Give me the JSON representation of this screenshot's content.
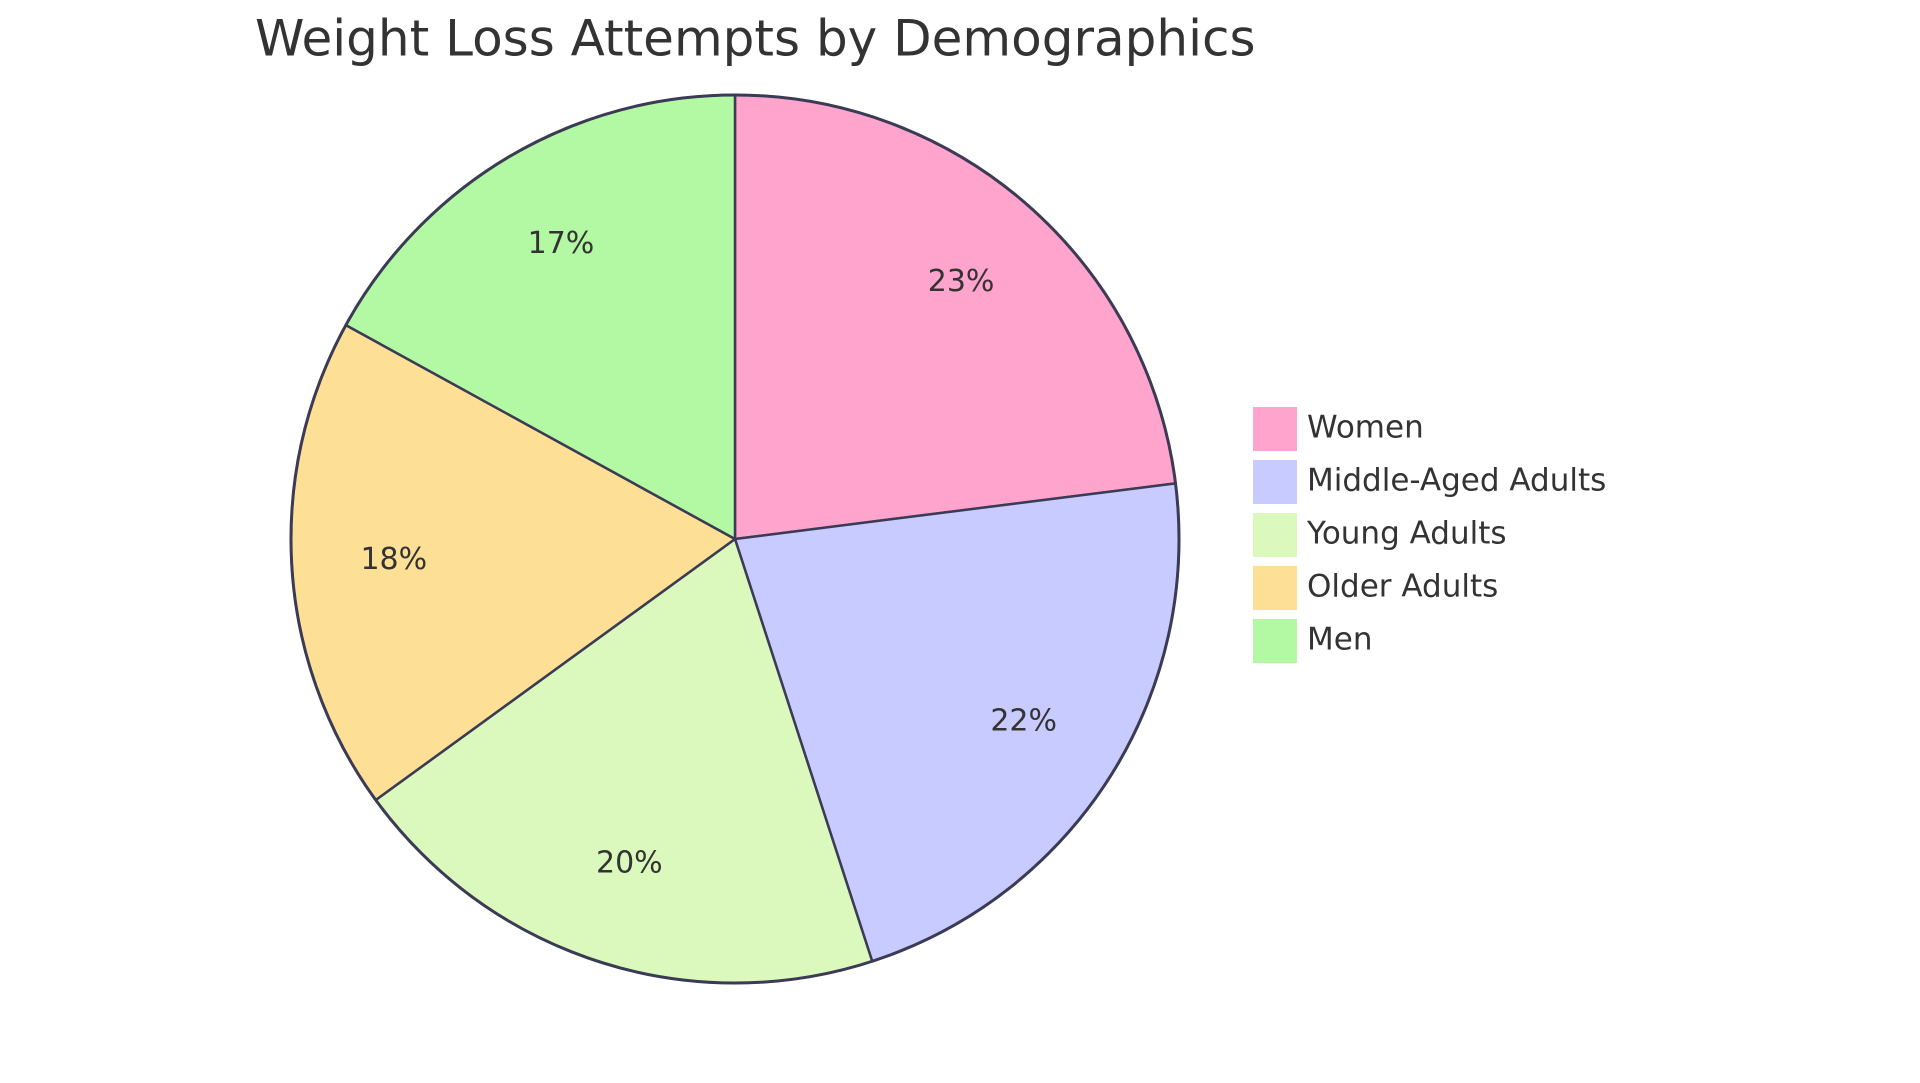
{
  "chart_data": {
    "type": "pie",
    "title": "Weight Loss Attempts by Demographics",
    "categories": [
      "Women",
      "Middle-Aged Adults",
      "Young Adults",
      "Older Adults",
      "Men"
    ],
    "values": [
      23,
      22,
      20,
      18,
      17
    ],
    "value_labels": [
      "23%",
      "22%",
      "20%",
      "18%",
      "17%"
    ],
    "colors": [
      "#ffa4cc",
      "#c8cbff",
      "#dbf9bc",
      "#fde096",
      "#b3f8a2"
    ],
    "legend": "right"
  }
}
